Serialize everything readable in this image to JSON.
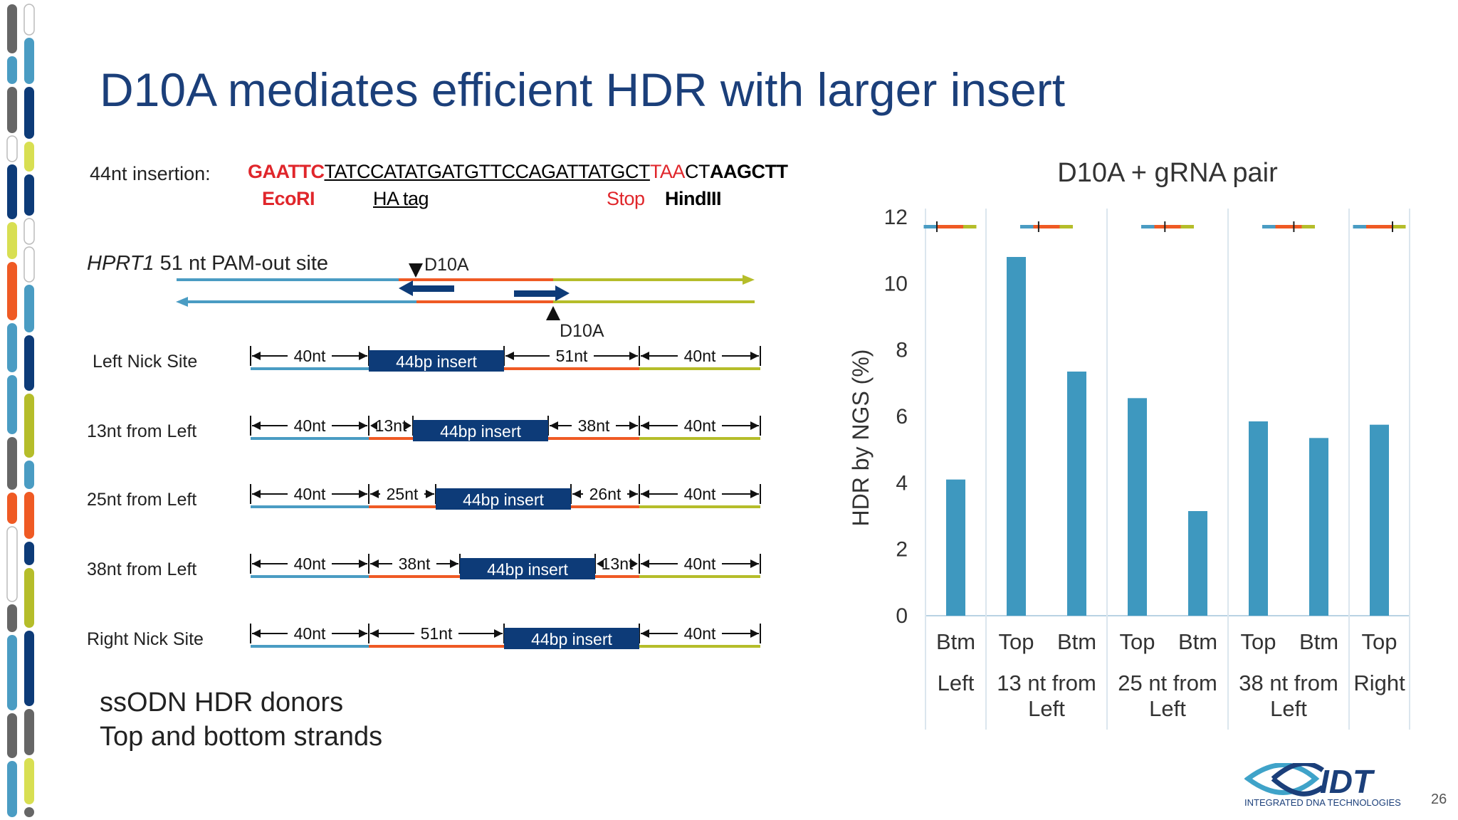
{
  "slide": {
    "title": "D10A mediates efficient HDR with larger insert",
    "page_number": "26",
    "logo": {
      "name": "IDT",
      "tagline": "INTEGRATED DNA TECHNOLOGIES"
    }
  },
  "insertion": {
    "label": "44nt insertion:",
    "sequence": {
      "ecori": "GAATTC",
      "ha": "TATCCATATGATGTTCCAGATTATGCT",
      "stop": "TAA",
      "ct": "CT",
      "hind": "AAGCTT"
    },
    "annotations": {
      "ecori": "EcoRI",
      "ha": "HA tag",
      "stop": "Stop",
      "hind": "HindIII"
    }
  },
  "site": {
    "gene": "HPRT1",
    "desc": "51 nt PAM-out site",
    "nick_top": "D10A",
    "nick_bottom": "D10A"
  },
  "designs": [
    {
      "label": "Left Nick Site",
      "segments": [
        "40nt",
        "51nt",
        "40nt"
      ],
      "insert": "44bp insert"
    },
    {
      "label": "13nt from Left",
      "segments": [
        "40nt",
        "13nt",
        "38nt",
        "40nt"
      ],
      "insert": "44bp insert"
    },
    {
      "label": "25nt from Left",
      "segments": [
        "40nt",
        "25nt",
        "26nt",
        "40nt"
      ],
      "insert": "44bp insert"
    },
    {
      "label": "38nt from Left",
      "segments": [
        "40nt",
        "38nt",
        "13nt",
        "40nt"
      ],
      "insert": "44bp insert"
    },
    {
      "label": "Right Nick Site",
      "segments": [
        "40nt",
        "51nt",
        "40nt"
      ],
      "insert": "44bp insert"
    }
  ],
  "donors": {
    "line1": "ssODN HDR donors",
    "line2": "Top and bottom strands"
  },
  "colors": {
    "title": "#1b3f7a",
    "blue": "#4a9cc3",
    "orange": "#ef5a24",
    "olive": "#b5bd2a",
    "insert": "#0d3b78",
    "bar": "#3e98bf",
    "red": "#e0262b"
  },
  "chart_data": {
    "type": "bar",
    "title": "D10A + gRNA pair",
    "ylabel": "HDR by NGS (%)",
    "xlabel": "",
    "ylim": [
      0,
      12
    ],
    "yticks": [
      0,
      2,
      4,
      6,
      8,
      10,
      12
    ],
    "grid": false,
    "categories": [
      "Btm",
      "Top",
      "Btm",
      "Top",
      "Btm",
      "Top",
      "Btm",
      "Top"
    ],
    "groups": [
      {
        "label": [
          "Left"
        ],
        "bars": [
          0
        ]
      },
      {
        "label": [
          "13 nt from",
          "Left"
        ],
        "bars": [
          1,
          2
        ]
      },
      {
        "label": [
          "25 nt from",
          "Left"
        ],
        "bars": [
          3,
          4
        ]
      },
      {
        "label": [
          "38 nt from",
          "Left"
        ],
        "bars": [
          5,
          6
        ]
      },
      {
        "label": [
          "Right"
        ],
        "bars": [
          7
        ]
      }
    ],
    "values": [
      4.1,
      10.8,
      7.35,
      6.55,
      3.15,
      5.85,
      5.35,
      5.75
    ]
  }
}
